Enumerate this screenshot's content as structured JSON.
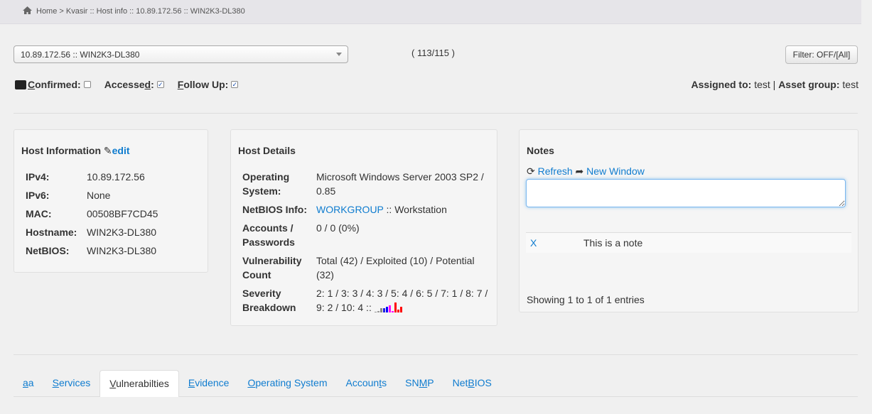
{
  "breadcrumb": "Home > Kvasir :: Host info :: 10.89.172.56 :: WIN2K3-DL380",
  "host_select": {
    "value": "10.89.172.56 :: WIN2K3-DL380"
  },
  "host_count": "( 113/115 )",
  "filter_button": "Filter: OFF/[All]",
  "flags": [
    {
      "pre": "",
      "key": "C",
      "post": "onfirmed:",
      "checked": false,
      "icon": "terminal-icon"
    },
    {
      "pre": "Accesse",
      "key": "d",
      "post": ":",
      "checked": true
    },
    {
      "pre": "",
      "key": "F",
      "post": "ollow Up:",
      "checked": true
    }
  ],
  "assignment": {
    "assigned_label": "Assigned to:",
    "assigned": "test",
    "sep": "|",
    "group_label": "Asset group:",
    "group": "test"
  },
  "host_info": {
    "title": "Host Information",
    "edit": "edit",
    "rows": [
      {
        "k": "IPv4:",
        "v": "10.89.172.56"
      },
      {
        "k": "IPv6:",
        "v": "None"
      },
      {
        "k": "MAC:",
        "v": "00508BF7CD45"
      },
      {
        "k": "Hostname:",
        "v": "WIN2K3-DL380"
      },
      {
        "k": "NetBIOS:",
        "v": "WIN2K3-DL380"
      }
    ]
  },
  "host_details": {
    "title": "Host Details",
    "os_label": "Operating System:",
    "os": "Microsoft Windows Server 2003 SP2 / 0.85",
    "netbios_label": "NetBIOS Info:",
    "netbios_link": "WORKGROUP",
    "netbios_rest": " :: Workstation",
    "accounts_label": "Accounts / Passwords",
    "accounts": "0 / 0 (0%)",
    "vuln_label": "Vulnerability Count",
    "vuln": "Total (42) / Exploited (10) / Potential (32)",
    "severity_label": "Severity Breakdown",
    "severity": "2: 1 / 3: 3 / 4: 3 / 5: 4 / 6: 5 / 7: 1 / 8: 7 / 9: 2 / 10: 4 ::",
    "severity_counts": [
      0,
      1,
      3,
      3,
      4,
      5,
      1,
      7,
      2,
      4
    ],
    "severity_colors": [
      "#999",
      "#999",
      "#888",
      "#2020e0",
      "#0000ff",
      "#ff00ff",
      "#ff00ff",
      "#ff0000",
      "#ff0000",
      "#ff0000"
    ]
  },
  "notes": {
    "title": "Notes",
    "refresh": "Refresh",
    "new_window": "New Window",
    "textarea": "",
    "rows": [
      {
        "delete": "X",
        "text": "This is a note"
      }
    ],
    "info": "Showing 1 to 1 of 1 entries"
  },
  "tabs": [
    {
      "pre": "",
      "key": "a",
      "post": "a"
    },
    {
      "pre": "",
      "key": "S",
      "post": "ervices"
    },
    {
      "pre": "",
      "key": "V",
      "post": "ulnerabilties",
      "active": true
    },
    {
      "pre": "",
      "key": "E",
      "post": "vidence"
    },
    {
      "pre": "",
      "key": "O",
      "post": "perating System"
    },
    {
      "pre": "Accoun",
      "key": "t",
      "post": "s"
    },
    {
      "pre": "SN",
      "key": "M",
      "post": "P"
    },
    {
      "pre": "Net",
      "key": "B",
      "post": "IOS"
    }
  ]
}
